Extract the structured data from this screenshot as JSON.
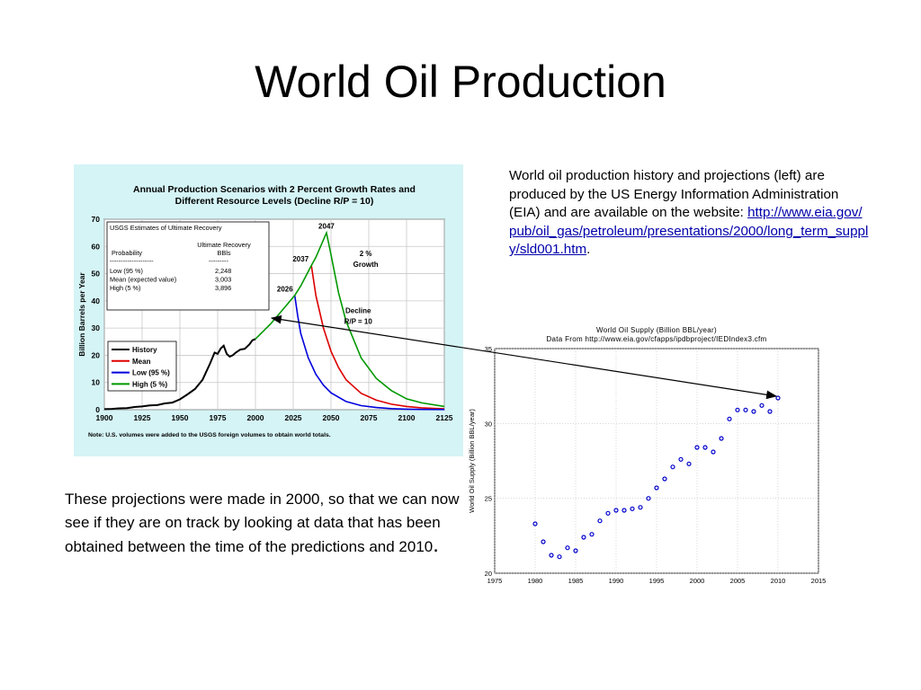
{
  "slide": {
    "title": "World Oil Production",
    "description_text": "World oil production history and projections (left) are produced by the US Energy Information Administration (EIA) and are available on the website:",
    "description_link": "http://www.eia.gov/pub/oil_gas/petroleum/presentations/2000/long_term_supply/sld001.htm",
    "description_period": ".",
    "bottom_text": "These projections were made in 2000, so that we can now see if they are on track by looking at data that has been obtained between the time of the predictions and 2010",
    "bottom_period": "."
  },
  "chart_data": [
    {
      "type": "line",
      "title": "Annual Production Scenarios with 2 Percent Growth Rates and Different Resource Levels (Decline R/P = 10)",
      "xlabel": "",
      "ylabel": "Billion Barrels per Year",
      "xlim": [
        1900,
        2125
      ],
      "ylim": [
        0,
        70
      ],
      "xticks": [
        1900,
        1925,
        1950,
        1975,
        2000,
        2025,
        2050,
        2075,
        2100,
        2125
      ],
      "yticks": [
        0,
        10,
        20,
        30,
        40,
        50,
        60,
        70
      ],
      "grid": true,
      "legend_position": "bottom-left",
      "note": "Note:  U.S. volumes were added to the USGS foreign volumes to obtain world totals.",
      "annotations": {
        "peak_low": "2026",
        "peak_mean": "2037",
        "peak_high": "2047",
        "growth": [
          "2 %",
          "Growth"
        ],
        "decline": [
          "Decline",
          "R/P = 10"
        ]
      },
      "usgs_table": {
        "heading": "USGS Estimates of Ultimate Recovery",
        "col1_header": "Probability",
        "col2_header": [
          "Ultimate Recovery",
          "BBls"
        ],
        "col1_rule": "--------------------",
        "col2_rule": "---------",
        "rows": [
          {
            "label": "Low (95 %)",
            "value": "2,248"
          },
          {
            "label": "Mean (expected value)",
            "value": "3,003"
          },
          {
            "label": "High (5 %)",
            "value": "3,896"
          }
        ]
      },
      "series": [
        {
          "name": "History",
          "color": "#000000",
          "x": [
            1900,
            1905,
            1910,
            1915,
            1920,
            1925,
            1930,
            1935,
            1940,
            1945,
            1950,
            1955,
            1960,
            1965,
            1970,
            1973,
            1975,
            1977,
            1979,
            1980,
            1981,
            1983,
            1985,
            1987,
            1990,
            1993,
            1996,
            1998,
            2000
          ],
          "y": [
            0.2,
            0.3,
            0.5,
            0.6,
            1.0,
            1.2,
            1.6,
            1.7,
            2.3,
            2.6,
            3.8,
            5.6,
            7.6,
            11.0,
            17.0,
            21.0,
            20.5,
            22.5,
            23.5,
            22.0,
            20.5,
            19.5,
            20.0,
            21.0,
            22.1,
            22.4,
            24.0,
            25.5,
            26.0
          ]
        },
        {
          "name": "Mean",
          "color": "#dd0000",
          "x": [
            2037,
            2040,
            2045,
            2050,
            2055,
            2060,
            2070,
            2080,
            2090,
            2100,
            2110,
            2125
          ],
          "y": [
            53.0,
            42.0,
            30.0,
            21.5,
            15.5,
            11.0,
            6.0,
            3.5,
            2.0,
            1.2,
            0.7,
            0.3
          ]
        },
        {
          "name": "Low (95 %)",
          "color": "#0000dd",
          "x": [
            2026,
            2028,
            2030,
            2035,
            2040,
            2045,
            2050,
            2060,
            2070,
            2080,
            2090,
            2100,
            2110,
            2125
          ],
          "y": [
            42.0,
            34.5,
            28.0,
            19.0,
            13.0,
            9.0,
            6.2,
            3.0,
            1.5,
            0.8,
            0.4,
            0.2,
            0.1,
            0.05
          ]
        },
        {
          "name": "High (5 %)",
          "color": "#009900",
          "x": [
            2000,
            2010,
            2020,
            2026,
            2030,
            2037,
            2040,
            2047,
            2050,
            2055,
            2060,
            2070,
            2080,
            2090,
            2100,
            2110,
            2125
          ],
          "y": [
            26.0,
            31.5,
            38.0,
            42.0,
            45.5,
            53.0,
            56.0,
            65.0,
            57.0,
            43.0,
            32.5,
            19.0,
            11.5,
            7.0,
            4.0,
            2.5,
            1.2
          ]
        }
      ]
    },
    {
      "type": "scatter",
      "title": "World Oil Supply  (Billion BBL/year)",
      "subtitle": "Data From http://www.eia.gov/cfapps/ipdbproject/IEDIndex3.cfm",
      "xlabel": "",
      "ylabel": "World Oil Supply (Billion BBL/year)",
      "xlim": [
        1975,
        2015
      ],
      "ylim": [
        20,
        35
      ],
      "xticks": [
        1975,
        1980,
        1985,
        1990,
        1995,
        2000,
        2005,
        2010,
        2015
      ],
      "yticks": [
        20,
        25,
        30,
        35
      ],
      "grid": true,
      "color": "#0000cc",
      "x": [
        1980,
        1981,
        1982,
        1983,
        1984,
        1985,
        1986,
        1987,
        1988,
        1989,
        1990,
        1991,
        1992,
        1993,
        1994,
        1995,
        1996,
        1997,
        1998,
        1999,
        2000,
        2001,
        2002,
        2003,
        2004,
        2005,
        2006,
        2007,
        2008,
        2009,
        2010
      ],
      "y": [
        23.3,
        22.1,
        21.2,
        21.1,
        21.7,
        21.5,
        22.4,
        22.6,
        23.5,
        24.0,
        24.2,
        24.2,
        24.3,
        24.4,
        25.0,
        25.7,
        26.3,
        27.1,
        27.6,
        27.3,
        28.4,
        28.4,
        28.1,
        29.0,
        30.3,
        30.9,
        30.9,
        30.8,
        31.2,
        30.8,
        31.7
      ]
    }
  ]
}
